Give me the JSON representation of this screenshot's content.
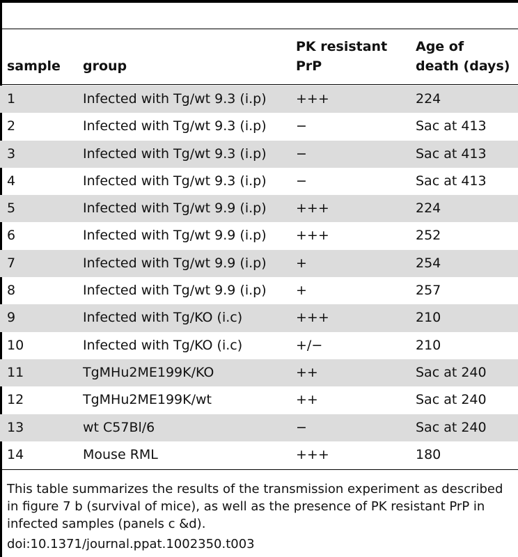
{
  "table": {
    "columns": {
      "sample": "sample",
      "group": "group",
      "pk_line1": "PK resistant",
      "pk_line2": "PrP",
      "age_line1": "Age of",
      "age_line2": "death (days)"
    },
    "rows": [
      {
        "sample": "1",
        "group": "Infected with Tg/wt 9.3 (i.p)",
        "pk": "+++",
        "age": "224"
      },
      {
        "sample": "2",
        "group": "Infected with Tg/wt 9.3 (i.p)",
        "pk": "−",
        "age": "Sac at 413"
      },
      {
        "sample": "3",
        "group": "Infected with Tg/wt 9.3 (i.p)",
        "pk": "−",
        "age": "Sac at 413"
      },
      {
        "sample": "4",
        "group": "Infected with Tg/wt 9.3 (i.p)",
        "pk": "−",
        "age": "Sac at 413"
      },
      {
        "sample": "5",
        "group": "Infected with Tg/wt 9.9 (i.p)",
        "pk": "+++",
        "age": "224"
      },
      {
        "sample": "6",
        "group": "Infected with Tg/wt 9.9 (i.p)",
        "pk": "+++",
        "age": "252"
      },
      {
        "sample": "7",
        "group": "Infected with Tg/wt 9.9 (i.p)",
        "pk": "+",
        "age": "254"
      },
      {
        "sample": "8",
        "group": "Infected with Tg/wt 9.9 (i.p)",
        "pk": "+",
        "age": "257"
      },
      {
        "sample": "9",
        "group": "Infected with Tg/KO (i.c)",
        "pk": "+++",
        "age": "210"
      },
      {
        "sample": "10",
        "group": "Infected with Tg/KO (i.c)",
        "pk": "+/−",
        "age": "210"
      },
      {
        "sample": "11",
        "group": "TgMHu2ME199K/KO",
        "pk": "++",
        "age": "Sac at 240"
      },
      {
        "sample": "12",
        "group": "TgMHu2ME199K/wt",
        "pk": "++",
        "age": "Sac at 240"
      },
      {
        "sample": "13",
        "group": "wt C57Bl/6",
        "pk": "−",
        "age": "Sac at 240"
      },
      {
        "sample": "14",
        "group": "Mouse RML",
        "pk": "+++",
        "age": "180"
      }
    ],
    "row_shading": "#dcdcdc"
  },
  "footnote": {
    "text": "This table summarizes the results of the transmission experiment as described in figure 7 b (survival of mice), as well as the presence of PK resistant PrP in infected samples (panels c &d).",
    "doi": "doi:10.1371/journal.ppat.1002350.t003"
  }
}
